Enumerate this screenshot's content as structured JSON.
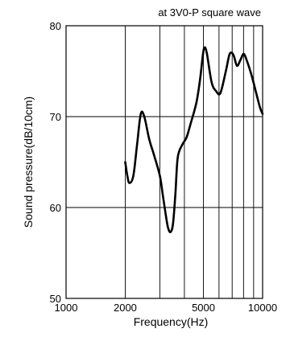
{
  "chart_data": {
    "type": "line",
    "title": "",
    "annotation": "at 3V0-P square wave",
    "xlabel": "Frequency(Hz)",
    "ylabel": "Sound pressure(dB/10cm)",
    "xscale": "log",
    "xlim": [
      1000,
      10000
    ],
    "ylim": [
      50,
      80
    ],
    "x_tick_labels": [
      "1000",
      "2000",
      "5000",
      "10000"
    ],
    "x_tick_values": [
      1000,
      2000,
      5000,
      10000
    ],
    "x_gridlines": [
      2000,
      3000,
      4000,
      5000,
      6000,
      7000,
      8000,
      9000,
      10000
    ],
    "y_ticks": [
      50,
      60,
      70,
      80
    ],
    "y_gridlines": [
      60,
      70
    ],
    "grid": true,
    "series": [
      {
        "color": "#000000",
        "x": [
          2000,
          2050,
          2100,
          2200,
          2300,
          2400,
          2500,
          2650,
          2800,
          3000,
          3100,
          3200,
          3300,
          3400,
          3500,
          3600,
          3700,
          3900,
          4100,
          4300,
          4600,
          4800,
          4950,
          5050,
          5200,
          5500,
          5800,
          6100,
          6500,
          6800,
          7100,
          7400,
          7700,
          8000,
          8300,
          8800,
          9300,
          9700,
          10000
        ],
        "y": [
          65,
          63.5,
          62.7,
          63.5,
          67,
          70.3,
          70,
          67.5,
          65.8,
          63.5,
          61.5,
          59.5,
          57.8,
          57.3,
          58.2,
          61.5,
          65.5,
          66.9,
          67.7,
          69.2,
          71.5,
          74,
          76.5,
          77.6,
          77,
          73.8,
          72.8,
          72.6,
          75,
          76.9,
          76.8,
          75.6,
          76.2,
          76.9,
          76.2,
          74.5,
          72.5,
          71,
          70.3
        ]
      }
    ]
  }
}
